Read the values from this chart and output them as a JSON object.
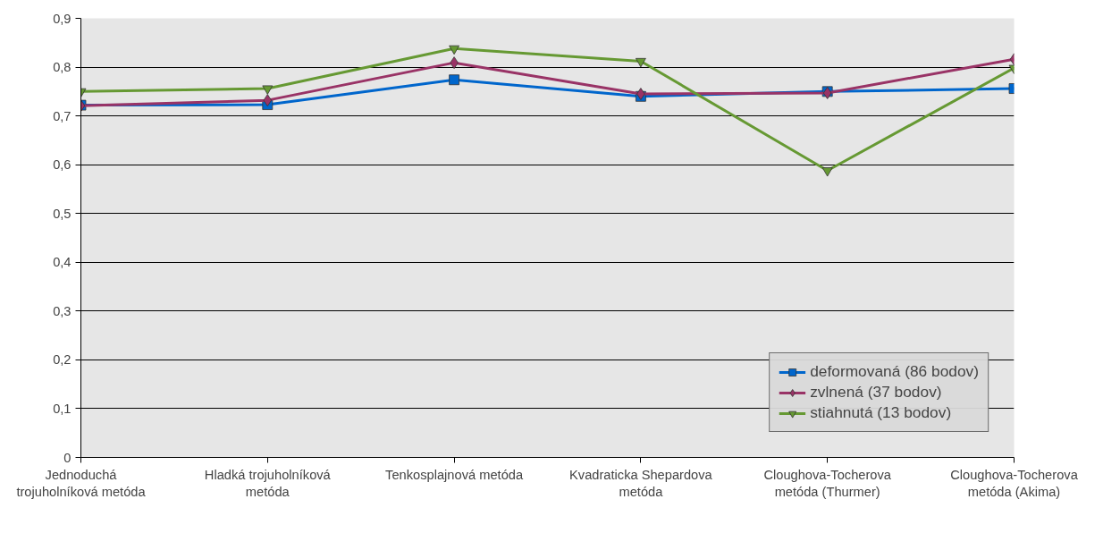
{
  "chart_data": {
    "type": "line",
    "categories": [
      "Jednoduchá trojuholníková metóda",
      "Hladká trojuholníková metóda",
      "Tenkosplajnová metóda",
      "Kvadraticka Shepardova metóda",
      "Cloughova-Tocherova metóda (Thurmer)",
      "Cloughova-Tocherova metóda (Akima)"
    ],
    "series": [
      {
        "name": "deformovaná (86 bodov)",
        "color": "#0066cc",
        "marker": "square",
        "values": [
          0.722,
          0.723,
          0.774,
          0.74,
          0.75,
          0.756
        ]
      },
      {
        "name": "zvlnená (37 bodov)",
        "color": "#993366",
        "marker": "diamond",
        "values": [
          0.721,
          0.732,
          0.809,
          0.745,
          0.747,
          0.816
        ]
      },
      {
        "name": "stiahnutá (13 bodov)",
        "color": "#669933",
        "marker": "triangle_down",
        "values": [
          0.75,
          0.756,
          0.838,
          0.812,
          0.588,
          0.798
        ]
      }
    ],
    "ylim": [
      0,
      0.9
    ],
    "yticks": [
      {
        "value": 0,
        "label": "0"
      },
      {
        "value": 0.1,
        "label": "0,1"
      },
      {
        "value": 0.2,
        "label": "0,2"
      },
      {
        "value": 0.3,
        "label": "0,3"
      },
      {
        "value": 0.4,
        "label": "0,4"
      },
      {
        "value": 0.5,
        "label": "0,5"
      },
      {
        "value": 0.6,
        "label": "0,6"
      },
      {
        "value": 0.7,
        "label": "0,7"
      },
      {
        "value": 0.8,
        "label": "0,8"
      },
      {
        "value": 0.9,
        "label": "0,9"
      }
    ],
    "grid": "y",
    "legend": "bottom right",
    "line_style": "solid"
  }
}
